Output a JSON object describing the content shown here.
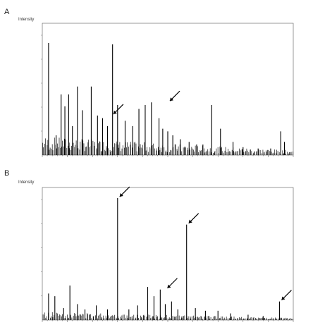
{
  "chart_data": [
    {
      "type": "bar",
      "panel_label": "A",
      "ylabel": "Intensity",
      "xlabel": "",
      "xlim": [
        0,
        100
      ],
      "ylim": [
        0,
        100
      ],
      "grid": false,
      "peaks": {
        "x": [
          2.5,
          5.5,
          7.5,
          9.0,
          10.5,
          12.0,
          14.0,
          16.0,
          19.5,
          22.0,
          24.0,
          26.0,
          28.0,
          30.0,
          33.0,
          36.0,
          38.5,
          41.0,
          43.5,
          46.5,
          48.0,
          50.0,
          52.0,
          55.0,
          58.5,
          61.5,
          64.0,
          67.5,
          71.0,
          76.0,
          80.0,
          86.0,
          91.0,
          95.0,
          96.5
        ],
        "y": [
          85,
          15,
          46,
          37,
          46,
          22,
          52,
          34,
          52,
          30,
          28,
          22,
          84,
          38,
          26,
          22,
          35,
          38,
          40,
          28,
          20,
          18,
          15,
          12,
          10,
          8,
          8,
          38,
          20,
          10,
          6,
          5,
          5,
          18,
          10
        ]
      },
      "annotations": [
        {
          "type": "arrow",
          "x": 27.5,
          "y": 30
        },
        {
          "type": "arrow",
          "x": 50.0,
          "y": 40
        }
      ]
    },
    {
      "type": "bar",
      "panel_label": "B",
      "ylabel": "Intensity",
      "xlabel": "",
      "xlim": [
        0,
        100
      ],
      "ylim": [
        0,
        100
      ],
      "grid": false,
      "peaks": {
        "x": [
          2.5,
          5.0,
          8.5,
          11.0,
          14.0,
          17.0,
          21.5,
          26.0,
          30.0,
          34.5,
          38.0,
          42.0,
          44.5,
          47.0,
          49.0,
          51.5,
          54.0,
          57.5,
          61.0,
          65.0,
          70.0,
          75.0,
          82.0,
          88.0,
          94.5
        ],
        "y": [
          20,
          18,
          9,
          26,
          12,
          8,
          11,
          8,
          92,
          8,
          11,
          25,
          18,
          23,
          12,
          14,
          8,
          72,
          9,
          7,
          7,
          5,
          4,
          3,
          14
        ]
      },
      "annotations": [
        {
          "type": "arrow",
          "x": 30.0,
          "y": 92
        },
        {
          "type": "arrow",
          "x": 49.0,
          "y": 23
        },
        {
          "type": "arrow",
          "x": 57.5,
          "y": 72
        },
        {
          "type": "arrow",
          "x": 94.5,
          "y": 14
        }
      ]
    }
  ]
}
